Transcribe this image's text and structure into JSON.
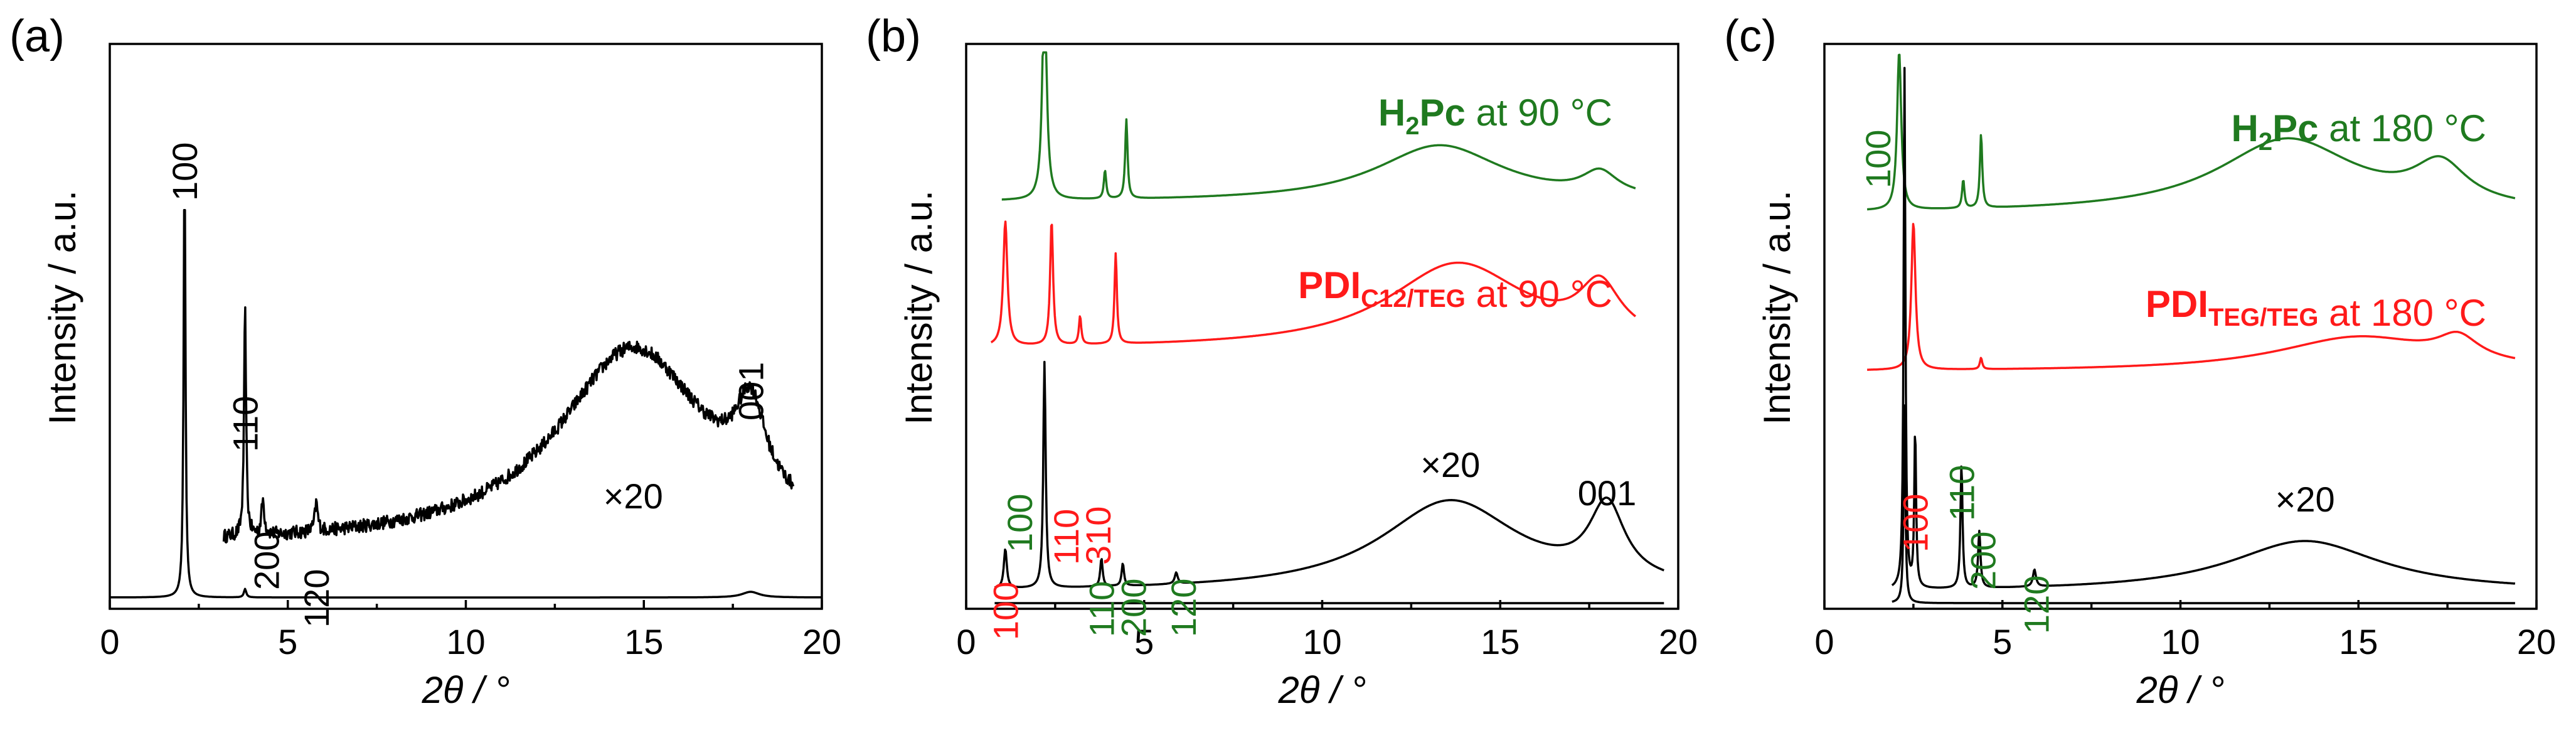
{
  "chart_data": [
    {
      "type": "line",
      "panel_label": "(a)",
      "xlabel": "2θ / °",
      "ylabel": "Intensity / a.u.",
      "xlim": [
        0,
        20
      ],
      "xticks": [
        0,
        5,
        10,
        15,
        20
      ],
      "series": [
        {
          "name": "main",
          "color": "#000000",
          "baseline": 0.02,
          "peaks": [
            {
              "x": 2.1,
              "h": 0.78,
              "w": 0.03
            },
            {
              "x": 3.8,
              "h": 0.015,
              "w": 0.04
            },
            {
              "x": 18.0,
              "h": 0.01,
              "w": 0.3
            }
          ],
          "xrange": [
            0.0,
            20.0
          ]
        },
        {
          "name": "×20",
          "color": "#000000",
          "baseline": 0.11,
          "peaks": [
            {
              "x": 3.8,
              "h": 0.4,
              "w": 0.035
            },
            {
              "x": 4.3,
              "h": 0.06,
              "w": 0.05
            },
            {
              "x": 5.8,
              "h": 0.05,
              "w": 0.05
            },
            {
              "x": 14.7,
              "h": 0.35,
              "w": 2.6
            },
            {
              "x": 18.0,
              "h": 0.15,
              "w": 0.5
            }
          ],
          "noise": 0.012,
          "xrange": [
            3.2,
            19.2
          ]
        }
      ],
      "annotations": [
        {
          "text": "100",
          "x": 2.1,
          "color": "#000000"
        },
        {
          "text": "110",
          "x": 3.8,
          "color": "#000000"
        },
        {
          "text": "200",
          "x": 4.4,
          "color": "#000000"
        },
        {
          "text": "120",
          "x": 5.8,
          "color": "#000000"
        },
        {
          "text": "001",
          "x": 18.0,
          "color": "#000000"
        },
        {
          "text": "×20",
          "x": 14.7,
          "color": "#000000"
        }
      ]
    },
    {
      "type": "line",
      "panel_label": "(b)",
      "xlabel": "2θ / °",
      "ylabel": "Intensity / a.u.",
      "xlim": [
        0,
        20
      ],
      "xticks": [
        0,
        5,
        10,
        15,
        20
      ],
      "legend": [
        {
          "compound": "H",
          "sub": "2",
          "rest": "Pc",
          "suffix": " at 90 °C",
          "color": "#1f7a1f"
        },
        {
          "compound": "PDI",
          "sub": "C12/TEG",
          "rest": "",
          "suffix": " at 90 °C",
          "color": "#ff1a1a"
        }
      ],
      "series": [
        {
          "name": "H2Pc at 90 °C",
          "color": "#1f7a1f",
          "baseline": 0.72,
          "peaks": [
            {
              "x": 2.2,
              "h": 0.4,
              "w": 0.07
            },
            {
              "x": 3.9,
              "h": 0.05,
              "w": 0.04
            },
            {
              "x": 4.5,
              "h": 0.14,
              "w": 0.04
            },
            {
              "x": 13.3,
              "h": 0.1,
              "w": 2.2
            },
            {
              "x": 17.8,
              "h": 0.04,
              "w": 0.6
            }
          ],
          "xrange": [
            1.0,
            18.8
          ]
        },
        {
          "name": "PDIC12/TEG at 90 °C",
          "color": "#ff1a1a",
          "baseline": 0.46,
          "peaks": [
            {
              "x": 1.1,
              "h": 0.22,
              "w": 0.07
            },
            {
              "x": 2.4,
              "h": 0.22,
              "w": 0.05
            },
            {
              "x": 3.2,
              "h": 0.05,
              "w": 0.04
            },
            {
              "x": 4.2,
              "h": 0.16,
              "w": 0.04
            },
            {
              "x": 13.8,
              "h": 0.15,
              "w": 2.4
            },
            {
              "x": 17.8,
              "h": 0.09,
              "w": 0.7
            }
          ],
          "xrange": [
            0.7,
            18.8
          ]
        },
        {
          "name": "×20",
          "color": "#000000",
          "baseline": 0.03,
          "peaks": [
            {
              "x": 1.1,
              "h": 0.07,
              "w": 0.05
            },
            {
              "x": 2.2,
              "h": 0.4,
              "w": 0.04
            },
            {
              "x": 3.8,
              "h": 0.05,
              "w": 0.04
            },
            {
              "x": 4.4,
              "h": 0.04,
              "w": 0.04
            },
            {
              "x": 5.9,
              "h": 0.02,
              "w": 0.05
            },
            {
              "x": 13.6,
              "h": 0.16,
              "w": 2.4
            },
            {
              "x": 18.0,
              "h": 0.13,
              "w": 0.6
            }
          ],
          "xrange": [
            0.8,
            19.6
          ]
        },
        {
          "name": "main",
          "color": "#000000",
          "baseline": 0.01,
          "peaks": [],
          "xrange": [
            0.8,
            19.6
          ]
        }
      ],
      "annotations": [
        {
          "text": "100",
          "x": 1.1,
          "color": "#ff1a1a"
        },
        {
          "text": "100",
          "x": 1.5,
          "color": "#1f7a1f"
        },
        {
          "text": "110",
          "x": 2.8,
          "color": "#ff1a1a"
        },
        {
          "text": "310",
          "x": 3.7,
          "color": "#ff1a1a"
        },
        {
          "text": "110",
          "x": 3.8,
          "color": "#1f7a1f"
        },
        {
          "text": "200",
          "x": 4.7,
          "color": "#1f7a1f"
        },
        {
          "text": "120",
          "x": 6.1,
          "color": "#1f7a1f"
        },
        {
          "text": "×20",
          "x": 13.6,
          "color": "#000000"
        },
        {
          "text": "001",
          "x": 18.0,
          "color": "#000000"
        }
      ]
    },
    {
      "type": "line",
      "panel_label": "(c)",
      "xlabel": "2θ / °",
      "ylabel": "Intensity / a.u.",
      "xlim": [
        0,
        20
      ],
      "xticks": [
        0,
        5,
        10,
        15,
        20
      ],
      "legend": [
        {
          "compound": "H",
          "sub": "2",
          "rest": "Pc",
          "suffix": " at 180 °C",
          "color": "#1f7a1f"
        },
        {
          "compound": "PDI",
          "sub": "TEG/TEG",
          "rest": "",
          "suffix": " at 180 °C",
          "color": "#ff1a1a"
        }
      ],
      "series": [
        {
          "name": "H2Pc at 180 °C",
          "color": "#1f7a1f",
          "baseline": 0.7,
          "peaks": [
            {
              "x": 2.1,
              "h": 0.28,
              "w": 0.07
            },
            {
              "x": 3.9,
              "h": 0.05,
              "w": 0.04
            },
            {
              "x": 4.4,
              "h": 0.13,
              "w": 0.04
            },
            {
              "x": 13.0,
              "h": 0.13,
              "w": 2.4
            },
            {
              "x": 17.3,
              "h": 0.07,
              "w": 0.9
            }
          ],
          "xrange": [
            1.2,
            19.4
          ]
        },
        {
          "name": "PDITEG/TEG at 180 °C",
          "color": "#ff1a1a",
          "baseline": 0.42,
          "peaks": [
            {
              "x": 2.5,
              "h": 0.26,
              "w": 0.07
            },
            {
              "x": 4.4,
              "h": 0.02,
              "w": 0.04
            },
            {
              "x": 15.0,
              "h": 0.06,
              "w": 2.8
            },
            {
              "x": 17.8,
              "h": 0.04,
              "w": 0.7
            }
          ],
          "xrange": [
            1.2,
            19.4
          ]
        },
        {
          "name": "×20",
          "color": "#000000",
          "baseline": 0.03,
          "peaks": [
            {
              "x": 2.25,
              "h": 0.92,
              "w": 0.03
            },
            {
              "x": 2.55,
              "h": 0.28,
              "w": 0.03
            },
            {
              "x": 3.85,
              "h": 0.22,
              "w": 0.035
            },
            {
              "x": 4.35,
              "h": 0.1,
              "w": 0.04
            },
            {
              "x": 5.9,
              "h": 0.03,
              "w": 0.05
            },
            {
              "x": 13.5,
              "h": 0.09,
              "w": 2.6
            }
          ],
          "xrange": [
            1.9,
            19.4
          ]
        },
        {
          "name": "main",
          "color": "#000000",
          "baseline": 0.01,
          "peaks": [
            {
              "x": 2.25,
              "h": 0.35,
              "w": 0.03
            }
          ],
          "xrange": [
            1.9,
            19.4
          ]
        }
      ],
      "annotations": [
        {
          "text": "100",
          "x": 1.5,
          "color": "#1f7a1f"
        },
        {
          "text": "100",
          "x": 2.55,
          "color": "#ff1a1a"
        },
        {
          "text": "110",
          "x": 3.85,
          "color": "#1f7a1f"
        },
        {
          "text": "200",
          "x": 4.45,
          "color": "#1f7a1f"
        },
        {
          "text": "120",
          "x": 5.95,
          "color": "#1f7a1f"
        },
        {
          "text": "×20",
          "x": 13.5,
          "color": "#000000"
        }
      ]
    }
  ]
}
